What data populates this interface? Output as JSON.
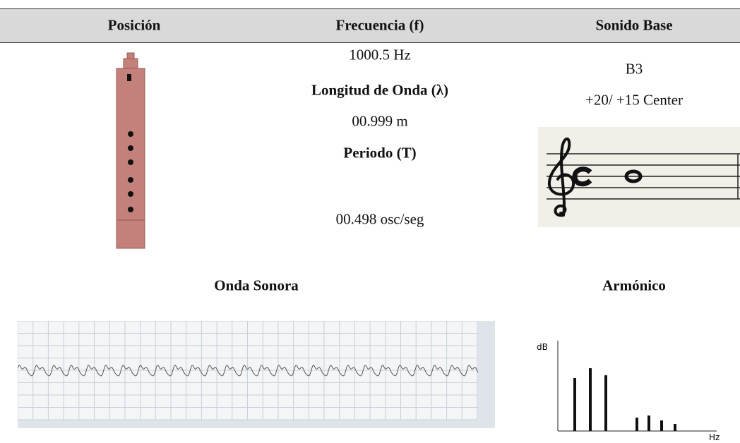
{
  "table": {
    "headers": [
      "Posición",
      "Frecuencia (f)",
      "Sonido Base"
    ]
  },
  "frequency": {
    "value": "1000.5 Hz",
    "wavelength_label": "Longitud de Onda (λ)",
    "wavelength": "00.999 m",
    "period_label": "Periodo (T)",
    "period": "00.498 osc/seg"
  },
  "base_sound": {
    "note": "B3",
    "tuning": "+20/ +15 Center"
  },
  "sections": {
    "wave_title": "Onda Sonora",
    "harmonic_title": "Armónico"
  },
  "harmonic": {
    "y_label": "dB",
    "x_label": "Hz"
  }
}
